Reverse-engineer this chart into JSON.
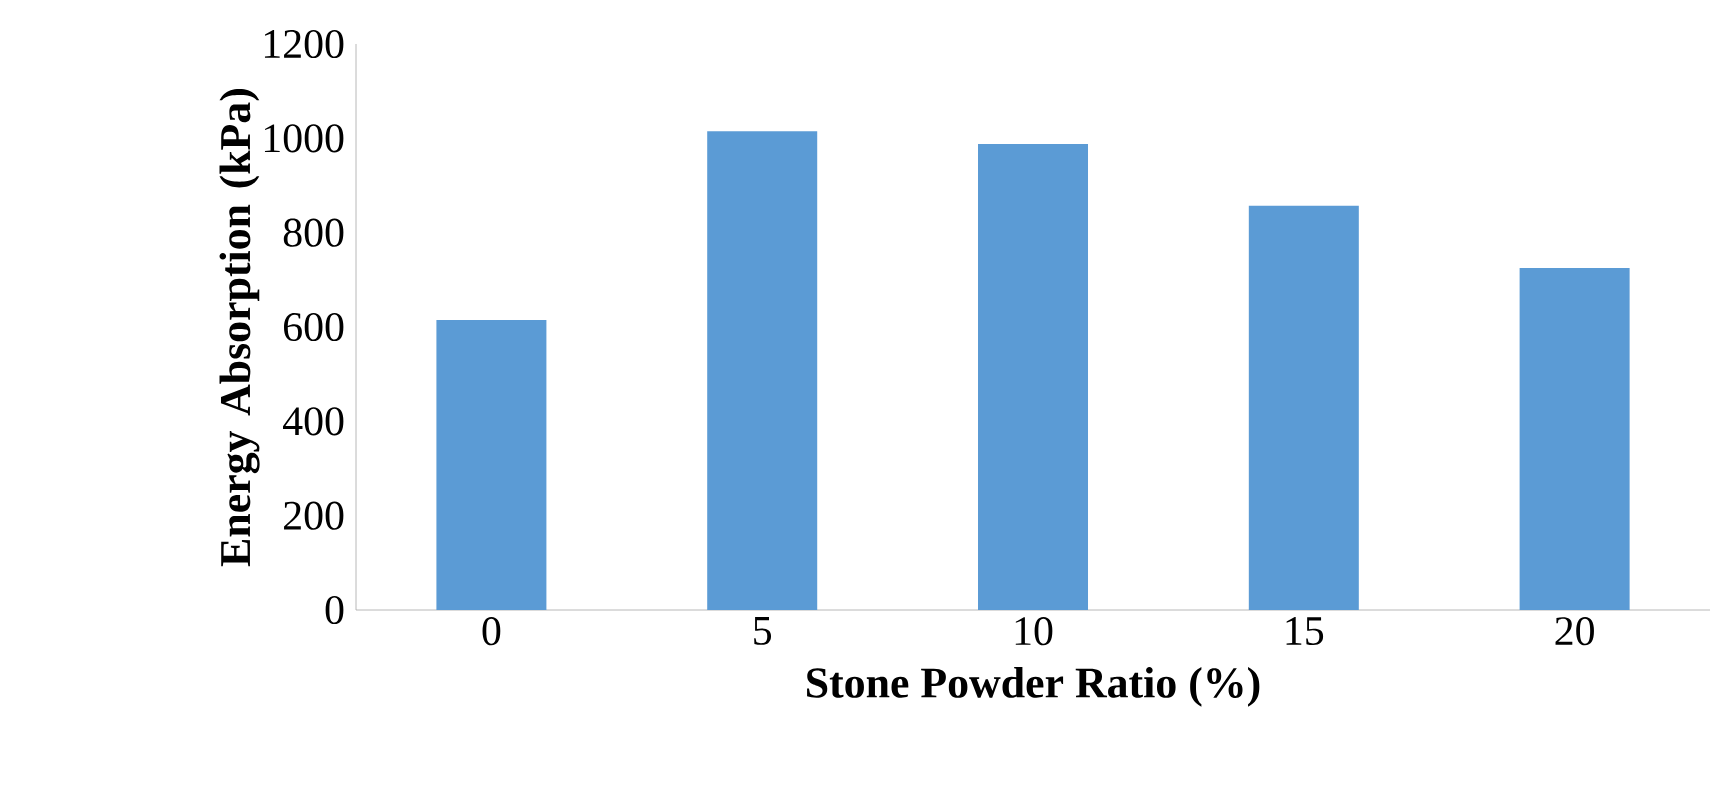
{
  "chart_data": {
    "type": "bar",
    "xlabel": "Stone Powder Ratio (%)",
    "ylabel": "Energy Absorption (kPa)",
    "categories": [
      "0",
      "5",
      "10",
      "15",
      "20"
    ],
    "values": [
      615,
      1015,
      988,
      857,
      725
    ],
    "color": "#5b9bd5",
    "ylim": [
      0,
      1200
    ],
    "yticks": [
      0,
      200,
      400,
      600,
      800,
      1000,
      1200
    ],
    "grid": false
  }
}
